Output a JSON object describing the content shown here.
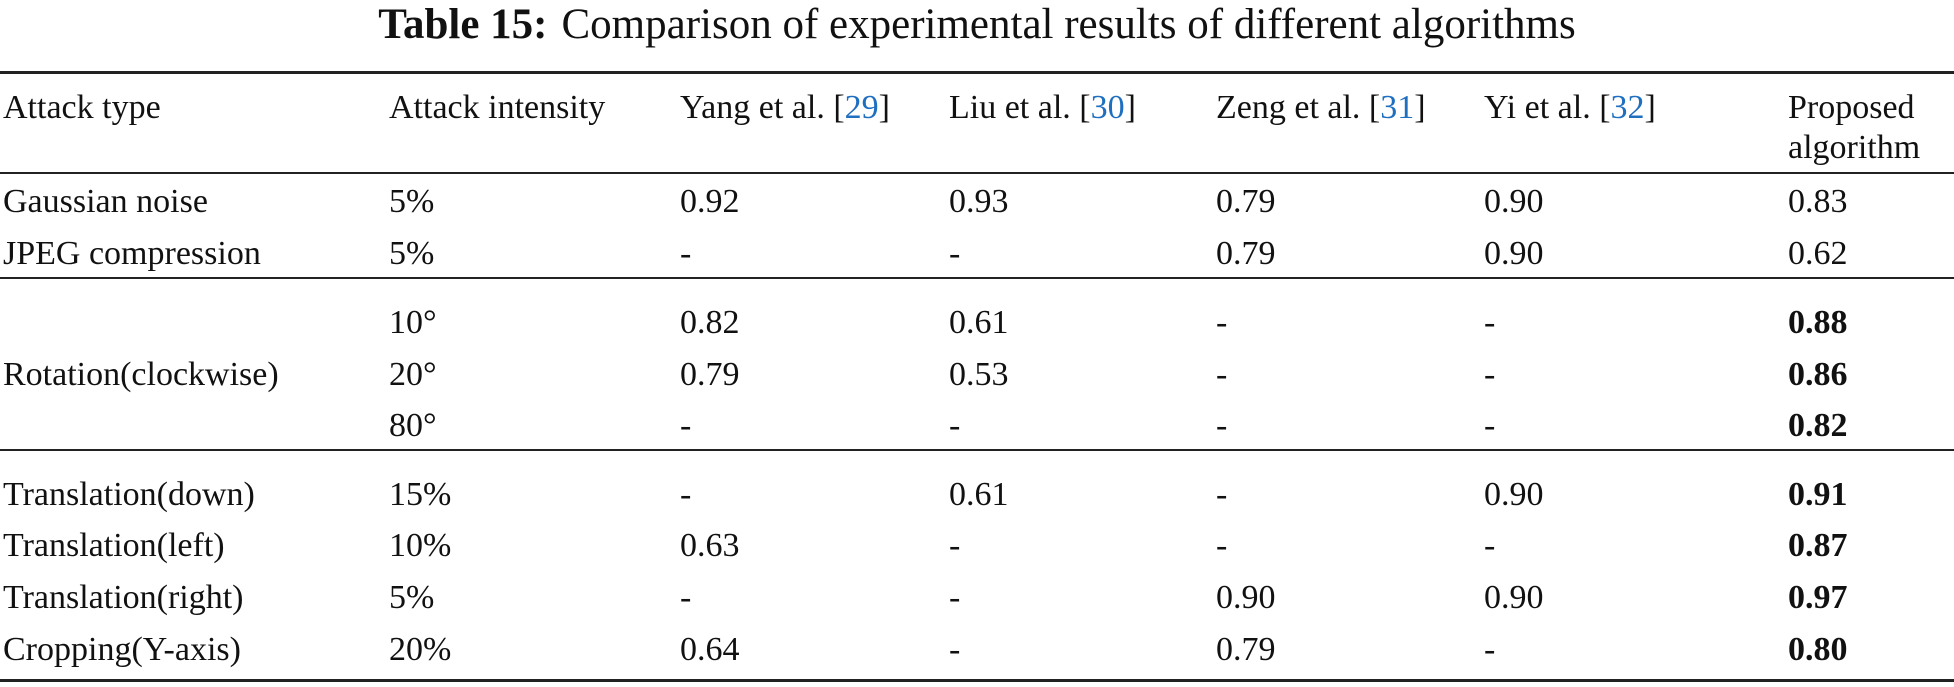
{
  "caption": {
    "label": "Table 15:",
    "text": "Comparison of experimental results of different algorithms"
  },
  "table": {
    "headers": {
      "attack_type": "Attack type",
      "attack_intensity": "Attack intensity",
      "yang": {
        "name": "Yang et al. [",
        "ref": "29",
        "close": "]"
      },
      "liu": {
        "name": "Liu et al. [",
        "ref": "30",
        "close": "]"
      },
      "zeng": {
        "name": "Zeng et al. [",
        "ref": "31",
        "close": "]"
      },
      "yi": {
        "name": "Yi et al. [",
        "ref": "32",
        "close": "]"
      },
      "proposed_line1": "Proposed",
      "proposed_line2": "algorithm"
    },
    "rows": [
      {
        "type": "Gaussian noise",
        "intensity": "5%",
        "yang": "0.92",
        "liu": "0.93",
        "zeng": "0.79",
        "yi": "0.90",
        "proposed": "0.83",
        "bold": false
      },
      {
        "type": "JPEG compression",
        "intensity": "5%",
        "yang": "-",
        "liu": "-",
        "zeng": "0.79",
        "yi": "0.90",
        "proposed": "0.62",
        "bold": false
      },
      {
        "type": "",
        "intensity": "10°",
        "yang": "0.82",
        "liu": "0.61",
        "zeng": "-",
        "yi": "-",
        "proposed": "0.88",
        "bold": true
      },
      {
        "type": "Rotation(clockwise)",
        "intensity": "20°",
        "yang": "0.79",
        "liu": "0.53",
        "zeng": "-",
        "yi": "-",
        "proposed": "0.86",
        "bold": true
      },
      {
        "type": "",
        "intensity": "80°",
        "yang": "-",
        "liu": "-",
        "zeng": "-",
        "yi": "-",
        "proposed": "0.82",
        "bold": true
      },
      {
        "type": "Translation(down)",
        "intensity": "15%",
        "yang": "-",
        "liu": "0.61",
        "zeng": "-",
        "yi": "0.90",
        "proposed": "0.91",
        "bold": true
      },
      {
        "type": "Translation(left)",
        "intensity": "10%",
        "yang": "0.63",
        "liu": "-",
        "zeng": "-",
        "yi": "-",
        "proposed": "0.87",
        "bold": true
      },
      {
        "type": "Translation(right)",
        "intensity": "5%",
        "yang": "-",
        "liu": "-",
        "zeng": "0.90",
        "yi": "0.90",
        "proposed": "0.97",
        "bold": true
      },
      {
        "type": "Cropping(Y-axis)",
        "intensity": "20%",
        "yang": "0.64",
        "liu": "-",
        "zeng": "0.79",
        "yi": "-",
        "proposed": "0.80",
        "bold": true
      }
    ]
  }
}
